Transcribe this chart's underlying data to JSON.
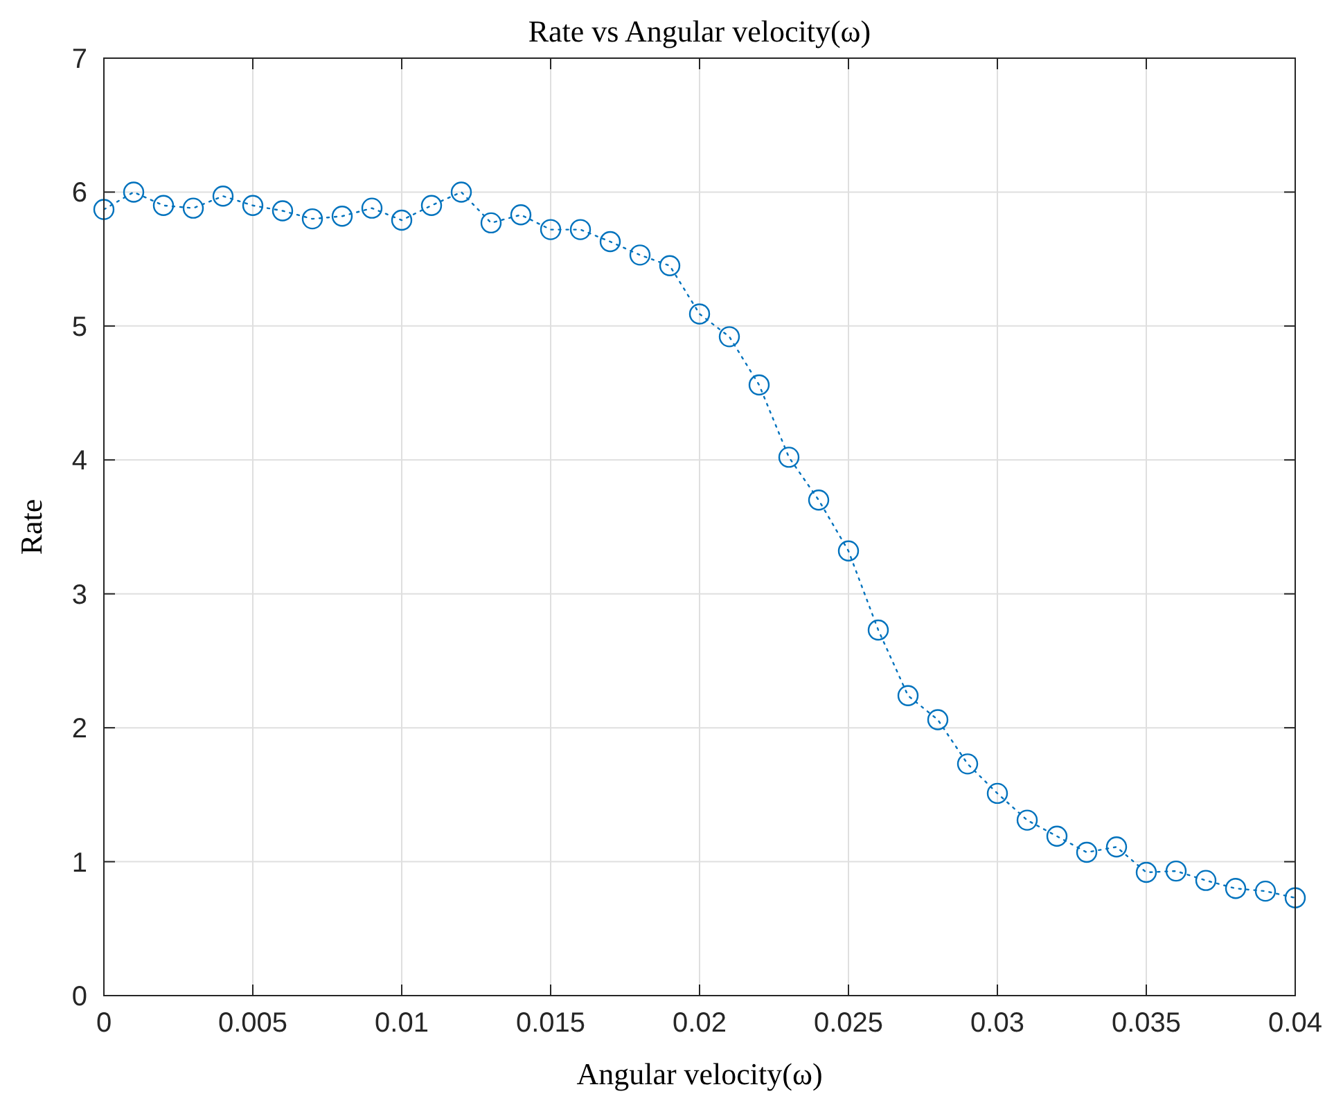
{
  "chart_data": {
    "type": "line",
    "title": "Rate vs Angular velocity(ω)",
    "xlabel": "Angular velocity(ω)",
    "ylabel": "Rate",
    "x": [
      0,
      0.001,
      0.002,
      0.003,
      0.004,
      0.005,
      0.006,
      0.007,
      0.008,
      0.009,
      0.01,
      0.011,
      0.012,
      0.013,
      0.014,
      0.015,
      0.016,
      0.017,
      0.018,
      0.019,
      0.02,
      0.021,
      0.022,
      0.023,
      0.024,
      0.025,
      0.026,
      0.027,
      0.028,
      0.029,
      0.03,
      0.031,
      0.032,
      0.033,
      0.034,
      0.035,
      0.036,
      0.037,
      0.038,
      0.039,
      0.04
    ],
    "series": [
      {
        "color": "#0072bd",
        "values": [
          5.87,
          6.0,
          5.9,
          5.88,
          5.97,
          5.9,
          5.86,
          5.8,
          5.82,
          5.88,
          5.79,
          5.9,
          6.0,
          5.77,
          5.83,
          5.72,
          5.72,
          5.63,
          5.53,
          5.45,
          5.09,
          4.92,
          4.56,
          4.02,
          3.7,
          3.32,
          2.73,
          2.24,
          2.06,
          1.73,
          1.51,
          1.31,
          1.19,
          1.07,
          1.11,
          0.92,
          0.93,
          0.86,
          0.8,
          0.78,
          0.73
        ]
      }
    ],
    "xlim": [
      0,
      0.04
    ],
    "xticks": [
      0,
      0.005,
      0.01,
      0.015,
      0.02,
      0.025,
      0.03,
      0.035,
      0.04
    ],
    "ylim": [
      0,
      7
    ],
    "yticks": [
      0,
      1,
      2,
      3,
      4,
      5,
      6,
      7
    ],
    "grid": true,
    "marker": "circle",
    "line_style": "dotted"
  }
}
